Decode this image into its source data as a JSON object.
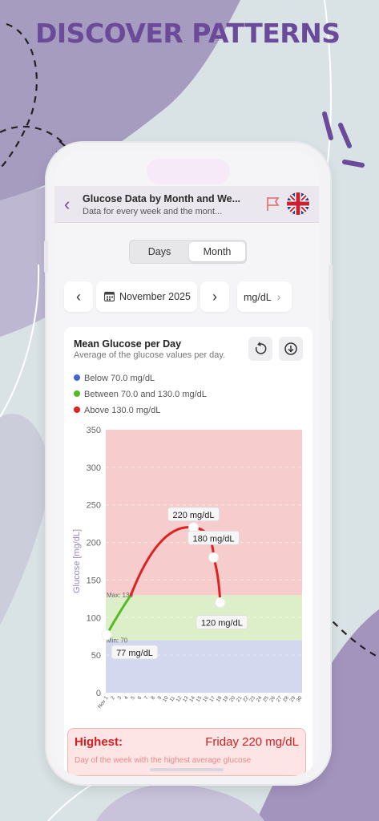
{
  "headline": "DISCOVER PATTERNS",
  "header": {
    "title": "Glucose Data by Month and We...",
    "subtitle": "Data for every week and the mont...",
    "back_icon": "chevron-left-icon",
    "flag_icon": "flag-outline-icon",
    "language_icon": "uk-flag-icon"
  },
  "segment": {
    "days_label": "Days",
    "month_label": "Month",
    "selected": "Month"
  },
  "nav": {
    "period_label": "November 2025",
    "unit_label": "mg/dL"
  },
  "card": {
    "title": "Mean Glucose per Day",
    "subtitle": "Average of the glucose values per day.",
    "legend": [
      {
        "label": "Below 70.0 mg/dL",
        "color": "#4466d0"
      },
      {
        "label": "Between 70.0 and 130.0 mg/dL",
        "color": "#55bb22"
      },
      {
        "label": "Above 130.0 mg/dL",
        "color": "#dd2222"
      }
    ]
  },
  "chart_data": {
    "type": "line",
    "title": "",
    "ylabel": "Glucose [mg/dL]",
    "ylim": [
      0,
      350
    ],
    "yticks": [
      0,
      50,
      100,
      150,
      200,
      250,
      300,
      350
    ],
    "xlabels": [
      "Nov 1",
      "2",
      "3",
      "4",
      "5",
      "6",
      "7",
      "8",
      "9",
      "10",
      "11",
      "12",
      "13",
      "14",
      "15",
      "16",
      "17",
      "18",
      "19",
      "20",
      "21",
      "22",
      "23",
      "24",
      "25",
      "26",
      "27",
      "28",
      "29",
      "30"
    ],
    "bands": [
      {
        "from": 0,
        "to": 70,
        "color": "#d3d8ee"
      },
      {
        "from": 70,
        "to": 130,
        "color": "#dcefc8"
      },
      {
        "from": 130,
        "to": 350,
        "color": "#f7cccc"
      }
    ],
    "threshold_labels": [
      {
        "text": "Max: 130",
        "value": 130
      },
      {
        "text": "Min: 70",
        "value": 70
      }
    ],
    "series": [
      {
        "points": [
          {
            "x": 1,
            "y": 77,
            "label": "77 mg/dL"
          },
          {
            "x": 14,
            "y": 220,
            "label": "220 mg/dL"
          },
          {
            "x": 17,
            "y": 180,
            "label": "180 mg/dL"
          },
          {
            "x": 18,
            "y": 120,
            "label": "120 mg/dL"
          }
        ]
      }
    ]
  },
  "highlight": {
    "label": "Highest:",
    "value": "Friday 220 mg/dL",
    "description": "Day of the week with the highest average glucose"
  },
  "colors": {
    "brand": "#6b4a9a",
    "high": "#dd2222",
    "in_range": "#55bb22",
    "low": "#4466d0"
  }
}
